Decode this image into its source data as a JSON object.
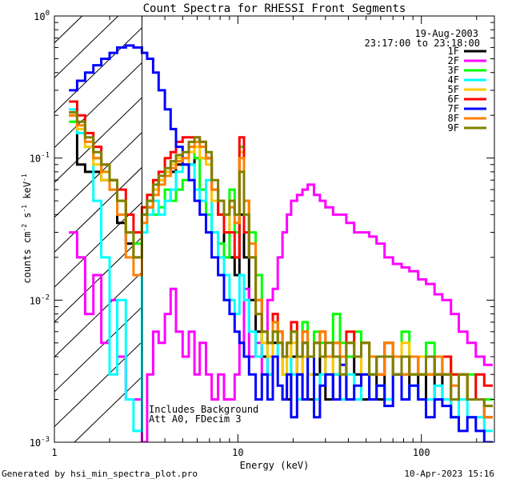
{
  "chart_data": {
    "type": "line",
    "title": "Count Spectra for RHESSI Front Segments",
    "xlabel": "Energy (keV)",
    "ylabel": "counts cm",
    "ylabel_sup1": "-2",
    "ylabel_mid": " s",
    "ylabel_sup2": "-1",
    "ylabel_end": " keV",
    "ylabel_sup3": "-1",
    "x_scale": "log",
    "y_scale": "log",
    "xlim": [
      1,
      250
    ],
    "ylim": [
      0.001,
      1
    ],
    "grid": false,
    "x_ticks": [
      {
        "value": 1,
        "label": "1"
      },
      {
        "value": 10,
        "label": "10"
      },
      {
        "value": 100,
        "label": "100"
      }
    ],
    "y_ticks": [
      {
        "value": 1,
        "base": "10",
        "exp": "0"
      },
      {
        "value": 0.1,
        "base": "10",
        "exp": "-1"
      },
      {
        "value": 0.01,
        "base": "10",
        "exp": "-2"
      },
      {
        "value": 0.001,
        "base": "10",
        "exp": "-3"
      }
    ],
    "date": "19-Aug-2003",
    "time_range": "23:17:00 to 23:18:00",
    "annotations": [
      "Includes Background",
      "Att A0, FDecim 3"
    ],
    "shaded_region_xmax": 3,
    "legend_position": "top-right",
    "series": [
      {
        "name": "1F",
        "color": "#000000"
      },
      {
        "name": "2F",
        "color": "#ff00ff"
      },
      {
        "name": "3F",
        "color": "#00ff00"
      },
      {
        "name": "4F",
        "color": "#00ffff"
      },
      {
        "name": "5F",
        "color": "#ffc800"
      },
      {
        "name": "6F",
        "color": "#ff0000"
      },
      {
        "name": "7F",
        "color": "#0000ff"
      },
      {
        "name": "8F",
        "color": "#ff8000"
      },
      {
        "name": "9F",
        "color": "#808000"
      }
    ],
    "edges": [
      1.2,
      1.33,
      1.47,
      1.63,
      1.8,
      2,
      2.2,
      2.45,
      2.7,
      3,
      3.2,
      3.45,
      3.7,
      4,
      4.3,
      4.6,
      5,
      5.4,
      5.8,
      6.2,
      6.7,
      7.2,
      7.8,
      8.4,
      9,
      9.6,
      10.2,
      10.8,
      11.5,
      12.5,
      13.5,
      14.5,
      15.5,
      16.5,
      17.5,
      18.5,
      19.5,
      21,
      22.5,
      24,
      26,
      28,
      30,
      33,
      36,
      39,
      43,
      47,
      52,
      57,
      63,
      70,
      78,
      86,
      96,
      106,
      118,
      130,
      145,
      160,
      178,
      198,
      220,
      245
    ],
    "values": {
      "1F": [
        0.2,
        0.09,
        0.08,
        0.08,
        0.07,
        0.06,
        0.035,
        0.025,
        0.02,
        0.04,
        0.045,
        0.06,
        0.07,
        0.08,
        0.08,
        0.09,
        0.09,
        0.09,
        0.1,
        0.1,
        0.1,
        0.06,
        0.04,
        0.02,
        0.02,
        0.015,
        0.04,
        0.02,
        0.01,
        0.006,
        0.004,
        0.003,
        0.005,
        0.006,
        0.003,
        0.002,
        0.004,
        0.003,
        0.005,
        0.002,
        0.003,
        0.004,
        0.002,
        0.003,
        0.002,
        0.004,
        0.003,
        0.002,
        0.003,
        0.002,
        0.004,
        0.003,
        0.002,
        0.003,
        0.002,
        0.003,
        0.002,
        0.003,
        0.0015,
        0.003,
        0.002,
        0.002,
        0.0015
      ],
      "2F": [
        0.03,
        0.02,
        0.008,
        0.015,
        0.005,
        0.01,
        0.004,
        0.002,
        0.002,
        0.001,
        0.003,
        0.006,
        0.005,
        0.008,
        0.012,
        0.006,
        0.004,
        0.006,
        0.003,
        0.005,
        0.003,
        0.002,
        0.003,
        0.002,
        0.002,
        0.003,
        0.005,
        0.012,
        0.004,
        0.005,
        0.003,
        0.01,
        0.012,
        0.02,
        0.03,
        0.04,
        0.05,
        0.055,
        0.06,
        0.065,
        0.055,
        0.05,
        0.045,
        0.04,
        0.04,
        0.035,
        0.03,
        0.03,
        0.028,
        0.025,
        0.02,
        0.018,
        0.017,
        0.016,
        0.014,
        0.013,
        0.011,
        0.01,
        0.008,
        0.006,
        0.005,
        0.004,
        0.0035
      ],
      "3F": [
        0.18,
        0.15,
        0.12,
        0.1,
        0.08,
        0.07,
        0.05,
        0.03,
        0.025,
        0.045,
        0.05,
        0.04,
        0.045,
        0.06,
        0.05,
        0.06,
        0.07,
        0.12,
        0.1,
        0.06,
        0.04,
        0.03,
        0.025,
        0.02,
        0.06,
        0.03,
        0.12,
        0.05,
        0.03,
        0.015,
        0.005,
        0.004,
        0.007,
        0.005,
        0.003,
        0.004,
        0.006,
        0.004,
        0.007,
        0.003,
        0.006,
        0.005,
        0.004,
        0.008,
        0.005,
        0.004,
        0.006,
        0.005,
        0.003,
        0.004,
        0.005,
        0.004,
        0.006,
        0.003,
        0.004,
        0.005,
        0.003,
        0.004,
        0.003,
        0.002,
        0.003,
        0.002,
        0.002
      ],
      "4F": [
        0.22,
        0.15,
        0.12,
        0.05,
        0.02,
        0.003,
        0.01,
        0.002,
        0.0012,
        0.03,
        0.04,
        0.05,
        0.04,
        0.05,
        0.06,
        0.08,
        0.09,
        0.09,
        0.06,
        0.05,
        0.07,
        0.03,
        0.02,
        0.015,
        0.01,
        0.008,
        0.015,
        0.01,
        0.006,
        0.004,
        0.005,
        0.003,
        0.004,
        0.005,
        0.003,
        0.004,
        0.003,
        0.002,
        0.004,
        0.003,
        0.002,
        0.003,
        0.004,
        0.003,
        0.002,
        0.003,
        0.002,
        0.003,
        0.002,
        0.0025,
        0.002,
        0.003,
        0.002,
        0.0025,
        0.002,
        0.002,
        0.0025,
        0.002,
        0.0015,
        0.002,
        0.0015,
        0.0015,
        0.0012
      ],
      "5F": [
        0.2,
        0.16,
        0.12,
        0.09,
        0.07,
        0.06,
        0.05,
        0.03,
        0.02,
        0.04,
        0.05,
        0.06,
        0.07,
        0.08,
        0.09,
        0.1,
        0.09,
        0.11,
        0.12,
        0.1,
        0.09,
        0.05,
        0.04,
        0.03,
        0.05,
        0.04,
        0.11,
        0.05,
        0.02,
        0.008,
        0.005,
        0.004,
        0.006,
        0.005,
        0.003,
        0.004,
        0.005,
        0.003,
        0.004,
        0.003,
        0.005,
        0.004,
        0.003,
        0.004,
        0.003,
        0.005,
        0.004,
        0.003,
        0.004,
        0.003,
        0.004,
        0.003,
        0.005,
        0.003,
        0.004,
        0.003,
        0.003,
        0.004,
        0.002,
        0.003,
        0.002,
        0.002,
        0.0018
      ],
      "6F": [
        0.25,
        0.2,
        0.15,
        0.12,
        0.09,
        0.07,
        0.06,
        0.04,
        0.03,
        0.045,
        0.055,
        0.07,
        0.08,
        0.1,
        0.11,
        0.13,
        0.14,
        0.14,
        0.14,
        0.13,
        0.1,
        0.06,
        0.04,
        0.03,
        0.03,
        0.02,
        0.14,
        0.03,
        0.02,
        0.01,
        0.006,
        0.005,
        0.008,
        0.006,
        0.004,
        0.005,
        0.007,
        0.004,
        0.006,
        0.004,
        0.005,
        0.006,
        0.004,
        0.005,
        0.004,
        0.006,
        0.004,
        0.005,
        0.004,
        0.003,
        0.005,
        0.004,
        0.003,
        0.004,
        0.003,
        0.004,
        0.003,
        0.004,
        0.003,
        0.003,
        0.002,
        0.003,
        0.0025
      ],
      "7F": [
        0.3,
        0.35,
        0.4,
        0.45,
        0.5,
        0.55,
        0.6,
        0.62,
        0.6,
        0.55,
        0.5,
        0.4,
        0.3,
        0.22,
        0.16,
        0.12,
        0.09,
        0.07,
        0.05,
        0.04,
        0.03,
        0.02,
        0.015,
        0.01,
        0.008,
        0.006,
        0.005,
        0.004,
        0.003,
        0.002,
        0.003,
        0.002,
        0.004,
        0.0025,
        0.002,
        0.003,
        0.0015,
        0.003,
        0.002,
        0.004,
        0.0015,
        0.0025,
        0.003,
        0.002,
        0.0035,
        0.002,
        0.0025,
        0.003,
        0.002,
        0.0025,
        0.0018,
        0.003,
        0.002,
        0.0025,
        0.002,
        0.0015,
        0.002,
        0.0018,
        0.0015,
        0.0012,
        0.0015,
        0.0012,
        0.001
      ],
      "8F": [
        0.2,
        0.17,
        0.13,
        0.1,
        0.08,
        0.06,
        0.04,
        0.02,
        0.015,
        0.035,
        0.045,
        0.055,
        0.065,
        0.075,
        0.085,
        0.095,
        0.1,
        0.12,
        0.13,
        0.12,
        0.1,
        0.06,
        0.05,
        0.04,
        0.045,
        0.035,
        0.1,
        0.05,
        0.025,
        0.01,
        0.006,
        0.005,
        0.007,
        0.006,
        0.004,
        0.005,
        0.006,
        0.004,
        0.006,
        0.004,
        0.005,
        0.006,
        0.004,
        0.005,
        0.004,
        0.005,
        0.004,
        0.005,
        0.004,
        0.003,
        0.005,
        0.004,
        0.003,
        0.004,
        0.003,
        0.003,
        0.004,
        0.003,
        0.0025,
        0.003,
        0.002,
        0.002,
        0.0015
      ],
      "9F": [
        0.21,
        0.18,
        0.14,
        0.11,
        0.09,
        0.07,
        0.05,
        0.03,
        0.02,
        0.04,
        0.05,
        0.065,
        0.075,
        0.085,
        0.095,
        0.105,
        0.11,
        0.13,
        0.14,
        0.13,
        0.11,
        0.07,
        0.05,
        0.04,
        0.05,
        0.04,
        0.08,
        0.04,
        0.02,
        0.008,
        0.006,
        0.005,
        0.006,
        0.005,
        0.004,
        0.005,
        0.006,
        0.004,
        0.005,
        0.004,
        0.005,
        0.004,
        0.005,
        0.004,
        0.003,
        0.005,
        0.004,
        0.005,
        0.003,
        0.004,
        0.004,
        0.003,
        0.004,
        0.003,
        0.003,
        0.004,
        0.003,
        0.003,
        0.002,
        0.003,
        0.002,
        0.002,
        0.0018
      ]
    }
  },
  "footer": {
    "generator": "Generated by hsi_min_spectra_plot.pro",
    "timestamp": "10-Apr-2023 15:16"
  }
}
